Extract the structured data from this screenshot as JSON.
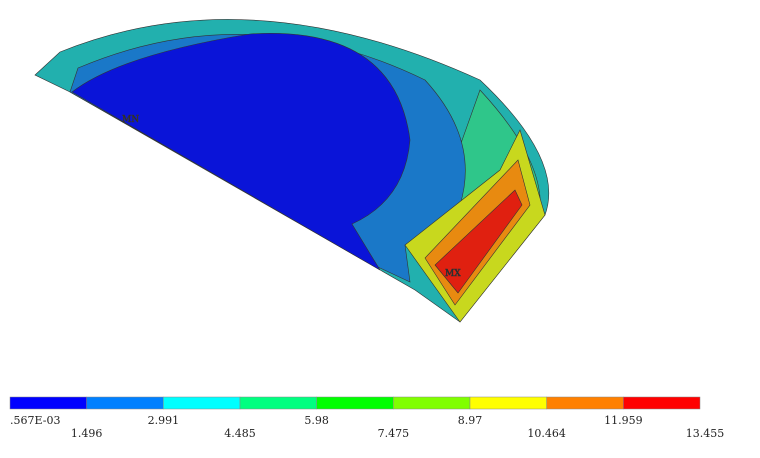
{
  "legend": {
    "colors": [
      "#0000ff",
      "#0080ff",
      "#00ffff",
      "#00ff80",
      "#00ff00",
      "#80ff00",
      "#ffff00",
      "#ff8000",
      "#ff0000"
    ],
    "labels": [
      ".567E-03",
      "1.496",
      "2.991",
      "4.485",
      "5.98",
      "7.475",
      "8.97",
      "10.464",
      "11.959",
      "13.455"
    ]
  },
  "markers": {
    "min": "MN",
    "max": "MX"
  }
}
